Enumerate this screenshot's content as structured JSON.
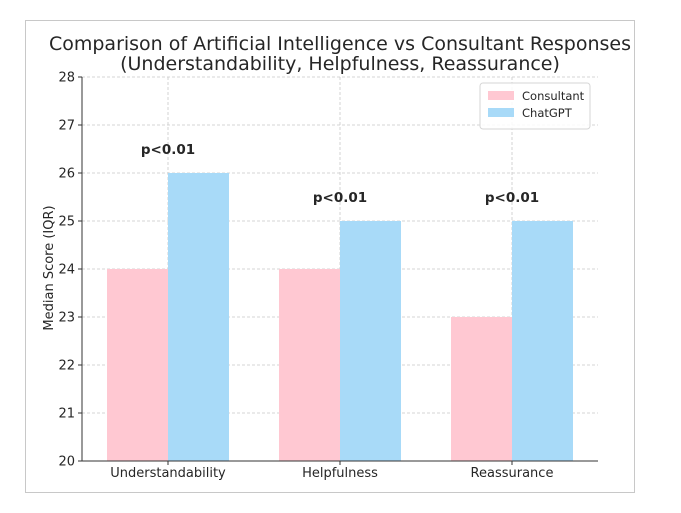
{
  "chart_data": {
    "type": "bar",
    "title_line1": "Comparison of Artificial Intelligence vs Consultant Responses",
    "title_line2": "(Understandability, Helpfulness, Reassurance)",
    "xlabel": "",
    "ylabel": "Median Score (IQR)",
    "ylim": [
      20,
      28
    ],
    "yticks": [
      20,
      21,
      22,
      23,
      24,
      25,
      26,
      27,
      28
    ],
    "categories": [
      "Understandability",
      "Helpfulness",
      "Reassurance"
    ],
    "series": [
      {
        "name": "Consultant",
        "values": [
          24,
          24,
          23
        ],
        "color": "#ffc8d2"
      },
      {
        "name": "ChatGPT",
        "values": [
          26,
          25,
          25
        ],
        "color": "#a8daf8"
      }
    ],
    "annotations": [
      "p<0.01",
      "p<0.01",
      "p<0.01"
    ],
    "grid": true,
    "legend_position": "top-right"
  }
}
